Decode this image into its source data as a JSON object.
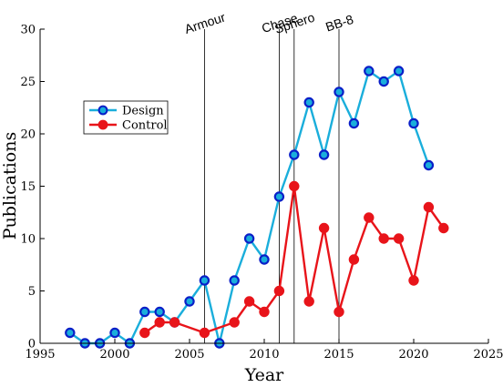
{
  "chart_data": {
    "type": "line",
    "xlabel": "Year",
    "ylabel": "Publications",
    "xlim": [
      1995,
      2025
    ],
    "ylim": [
      0,
      30
    ],
    "xticks": [
      1995,
      2000,
      2005,
      2010,
      2015,
      2020,
      2025
    ],
    "yticks": [
      0,
      5,
      10,
      15,
      20,
      25,
      30
    ],
    "legend_position": "upper-left",
    "series": [
      {
        "name": "Design",
        "color": "#1aaedb",
        "marker_edge": "#0a1fc8",
        "x": [
          1997,
          1998,
          1999,
          2000,
          2001,
          2002,
          2003,
          2004,
          2005,
          2006,
          2007,
          2008,
          2009,
          2010,
          2011,
          2012,
          2013,
          2014,
          2015,
          2016,
          2017,
          2018,
          2019,
          2020,
          2021
        ],
        "y": [
          1,
          0,
          0,
          1,
          0,
          3,
          3,
          2,
          4,
          6,
          0,
          6,
          10,
          8,
          14,
          18,
          23,
          18,
          24,
          21,
          26,
          25,
          26,
          21,
          17
        ]
      },
      {
        "name": "Control",
        "color": "#e8141a",
        "marker_edge": "#e8141a",
        "x": [
          2002,
          2003,
          2004,
          2006,
          2008,
          2009,
          2010,
          2011,
          2012,
          2013,
          2014,
          2015,
          2016,
          2017,
          2018,
          2019,
          2020,
          2021,
          2022
        ],
        "y": [
          1,
          2,
          2,
          1,
          2,
          4,
          3,
          5,
          15,
          4,
          11,
          3,
          8,
          12,
          10,
          10,
          6,
          13,
          11
        ]
      }
    ],
    "annotations": [
      {
        "label": "Armour",
        "x": 2006
      },
      {
        "label": "Chase",
        "x": 2011
      },
      {
        "label": "Sphero",
        "x": 2012
      },
      {
        "label": "BB-8",
        "x": 2015
      }
    ]
  }
}
